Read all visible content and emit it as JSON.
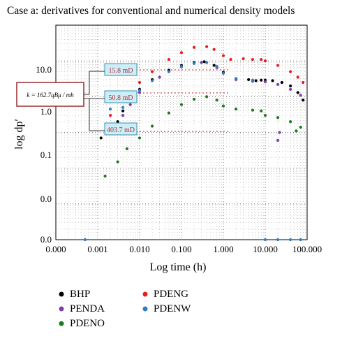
{
  "chart_data": {
    "type": "scatter",
    "title": "Case a: derivatives for conventional and numerical density models",
    "xlabel": "Log time (h)",
    "ylabel": "log dp′",
    "x_scale": "log",
    "x_ticks": [
      "0.000",
      "0.001",
      "0.010",
      "0.100",
      "1.000",
      "10.000",
      "100.000"
    ],
    "y_ticks": [
      "0.0",
      "0.0",
      "0.1",
      "1.0",
      "10.0"
    ],
    "grid": true,
    "legend_placement": "bottom",
    "series": [
      {
        "name": "BHP",
        "color": "#000000",
        "points": [
          [
            0.0012,
            0.07
          ],
          [
            0.002,
            0.14
          ],
          [
            0.003,
            0.2
          ],
          [
            0.004,
            0.4
          ],
          [
            0.006,
            0.8
          ],
          [
            0.01,
            1.6
          ],
          [
            0.02,
            3
          ],
          [
            0.05,
            5.5
          ],
          [
            0.1,
            7.5
          ],
          [
            0.2,
            9
          ],
          [
            0.35,
            9.5
          ],
          [
            0.6,
            7.5
          ],
          [
            1,
            4.8
          ],
          [
            2,
            3.2
          ],
          [
            4,
            3
          ],
          [
            6,
            2.8
          ],
          [
            8,
            2.9
          ],
          [
            10,
            2.9
          ],
          [
            15,
            2.8
          ],
          [
            25,
            2.5
          ],
          [
            40,
            2
          ],
          [
            60,
            1.3
          ],
          [
            80,
            0.8
          ]
        ]
      },
      {
        "name": "PENDA",
        "color": "#7b3fa8",
        "points": [
          [
            0.0025,
            0.14
          ],
          [
            0.004,
            0.3
          ],
          [
            0.006,
            0.6
          ],
          [
            0.01,
            1.3
          ],
          [
            0.03,
            3.5
          ],
          [
            0.1,
            6.8
          ],
          [
            0.3,
            9
          ],
          [
            0.7,
            6.5
          ],
          [
            2,
            3
          ],
          [
            5,
            2.7
          ],
          [
            10,
            2.6
          ],
          [
            20,
            2.2
          ],
          [
            40,
            1.6
          ],
          [
            70,
            1.1
          ],
          [
            20,
            0.06
          ],
          [
            22,
            0.1
          ]
        ]
      },
      {
        "name": "PDENO",
        "color": "#1e7a1e",
        "points": [
          [
            0.0015,
            0.006
          ],
          [
            0.003,
            0.015
          ],
          [
            0.005,
            0.035
          ],
          [
            0.01,
            0.07
          ],
          [
            0.02,
            0.15
          ],
          [
            0.05,
            0.35
          ],
          [
            0.1,
            0.6
          ],
          [
            0.2,
            0.85
          ],
          [
            0.4,
            1.0
          ],
          [
            0.7,
            0.8
          ],
          [
            1,
            0.55
          ],
          [
            2,
            0.45
          ],
          [
            5,
            0.42
          ],
          [
            8,
            0.4
          ],
          [
            10,
            0.3
          ],
          [
            20,
            0.26
          ],
          [
            40,
            0.2
          ],
          [
            55,
            0.11
          ],
          [
            70,
            0.14
          ]
        ]
      },
      {
        "name": "PDENG",
        "color": "#e02020",
        "points": [
          [
            0.002,
            0.3
          ],
          [
            0.004,
            0.8
          ],
          [
            0.006,
            1.3
          ],
          [
            0.01,
            2.5
          ],
          [
            0.02,
            5
          ],
          [
            0.05,
            11
          ],
          [
            0.1,
            17
          ],
          [
            0.2,
            24
          ],
          [
            0.4,
            25
          ],
          [
            0.6,
            21
          ],
          [
            1,
            14
          ],
          [
            1.5,
            11
          ],
          [
            3,
            11.5
          ],
          [
            5,
            11
          ],
          [
            8,
            11
          ],
          [
            10,
            10
          ],
          [
            20,
            7.5
          ],
          [
            40,
            5
          ],
          [
            60,
            3.5
          ],
          [
            80,
            2.5
          ]
        ]
      },
      {
        "name": "PDENW",
        "color": "#2f7cc4",
        "points": [
          [
            0.0005,
            0.0001
          ],
          [
            0.002,
            0.45
          ],
          [
            0.004,
            0.5
          ],
          [
            0.006,
            0.9
          ],
          [
            0.01,
            1.5
          ],
          [
            0.02,
            2.8
          ],
          [
            0.05,
            5
          ],
          [
            0.1,
            7
          ],
          [
            0.2,
            8.5
          ],
          [
            0.4,
            9
          ],
          [
            0.7,
            7
          ],
          [
            1,
            4.5
          ],
          [
            2,
            3.2
          ],
          [
            5,
            2.9
          ],
          [
            10,
            0.0001
          ],
          [
            20,
            0.0001
          ],
          [
            40,
            0.0001
          ],
          [
            70,
            0.0001
          ]
        ]
      }
    ],
    "annotations": {
      "formula": "k = 162.7qBμ / mh",
      "boxes": [
        "15.8 mD",
        "50.8 mD",
        "403.7 mD"
      ]
    }
  }
}
